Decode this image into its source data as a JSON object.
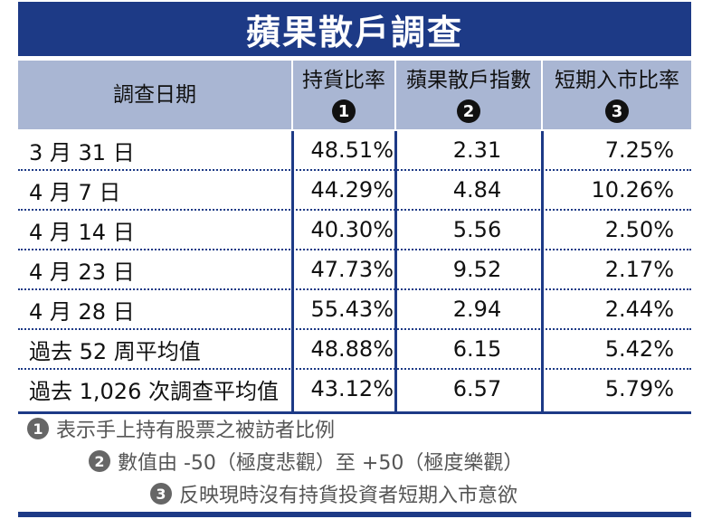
{
  "title": "蘋果散戶調查",
  "columns": [
    {
      "label": "調查日期",
      "num": ""
    },
    {
      "label": "持貨比率",
      "num": "1"
    },
    {
      "label": "蘋果散戶指數",
      "num": "2"
    },
    {
      "label": "短期入市比率",
      "num": "3"
    }
  ],
  "rows": [
    {
      "date": "3 月 31 日",
      "holding": "48.51%",
      "index": "2.31",
      "entry": "7.25%"
    },
    {
      "date": "4 月 7 日",
      "holding": "44.29%",
      "index": "4.84",
      "entry": "10.26%"
    },
    {
      "date": "4 月 14 日",
      "holding": "40.30%",
      "index": "5.56",
      "entry": "2.50%"
    },
    {
      "date": "4 月 23 日",
      "holding": "47.73%",
      "index": "9.52",
      "entry": "2.17%"
    },
    {
      "date": "4 月 28 日",
      "holding": "55.43%",
      "index": "2.94",
      "entry": "2.44%"
    },
    {
      "date": "過去 52 周平均值",
      "holding": "48.88%",
      "index": "6.15",
      "entry": "5.42%"
    },
    {
      "date": "過去 1,026 次調查平均值",
      "holding": "43.12%",
      "index": "6.57",
      "entry": "5.79%"
    }
  ],
  "notes": [
    {
      "num": "1",
      "text": "表示手上持有股票之被訪者比例"
    },
    {
      "num": "2",
      "text": "數值由 -50（極度悲觀）至 +50（極度樂觀）"
    },
    {
      "num": "3",
      "text": "反映現時沒有持貨投資者短期入市意欲"
    }
  ],
  "colors": {
    "primary": "#1d3a86",
    "header_bg": "#a9b6d3",
    "note_text": "#555555"
  }
}
